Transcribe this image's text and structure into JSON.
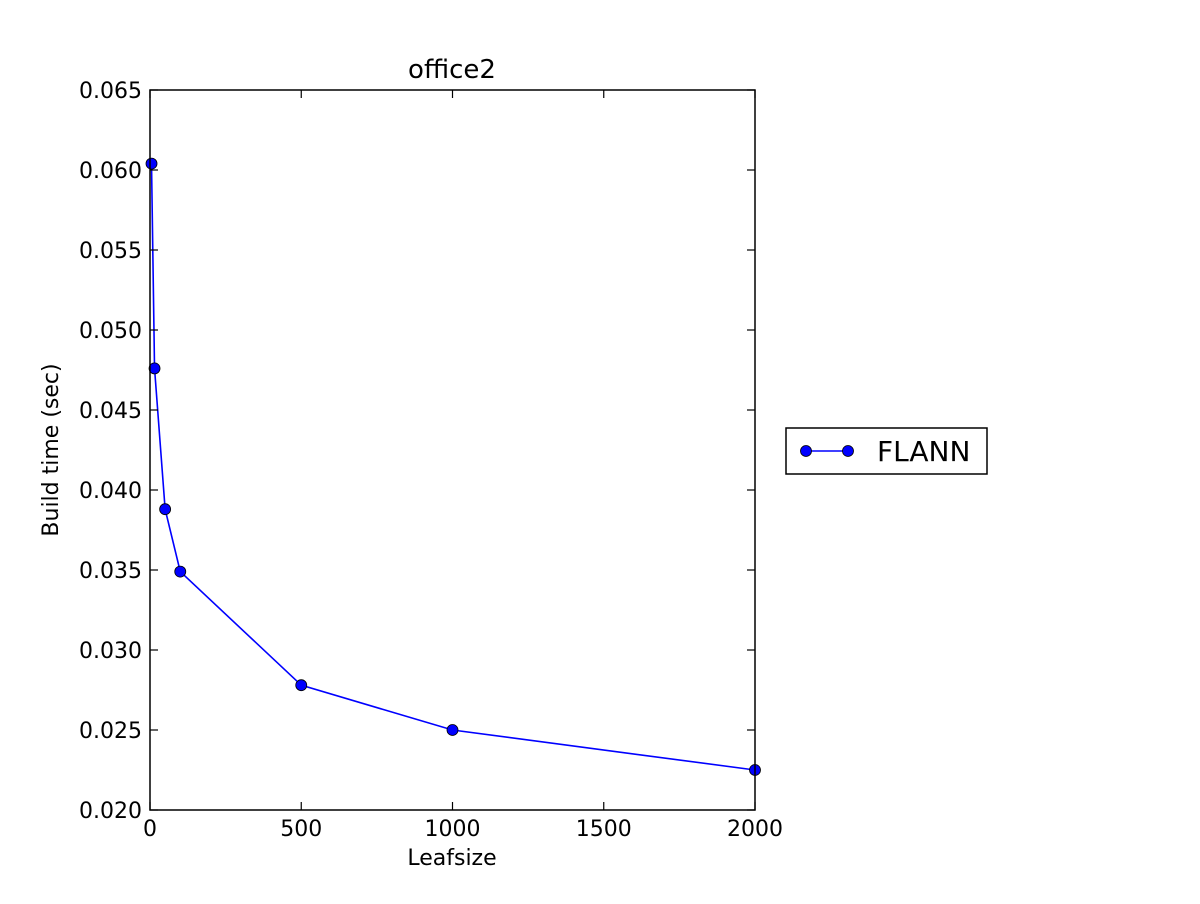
{
  "chart_data": {
    "type": "line",
    "title": "office2",
    "xlabel": "Leafsize",
    "ylabel": "Build time (sec)",
    "xlim": [
      0,
      2000
    ],
    "ylim": [
      0.02,
      0.065
    ],
    "x_ticks": [
      0,
      500,
      1000,
      1500,
      2000
    ],
    "x_tick_labels": [
      "0",
      "500",
      "1000",
      "1500",
      "2000"
    ],
    "y_ticks": [
      0.02,
      0.025,
      0.03,
      0.035,
      0.04,
      0.045,
      0.05,
      0.055,
      0.06,
      0.065
    ],
    "y_tick_labels": [
      "0.020",
      "0.025",
      "0.030",
      "0.035",
      "0.040",
      "0.045",
      "0.050",
      "0.055",
      "0.060",
      "0.065"
    ],
    "grid": false,
    "legend_position": "outside-right",
    "series": [
      {
        "name": "FLANN",
        "color": "#0000ff",
        "marker": "circle",
        "x": [
          5,
          15,
          50,
          100,
          500,
          1000,
          2000
        ],
        "y": [
          0.0604,
          0.0476,
          0.0388,
          0.0349,
          0.0278,
          0.025,
          0.0225
        ]
      }
    ]
  }
}
